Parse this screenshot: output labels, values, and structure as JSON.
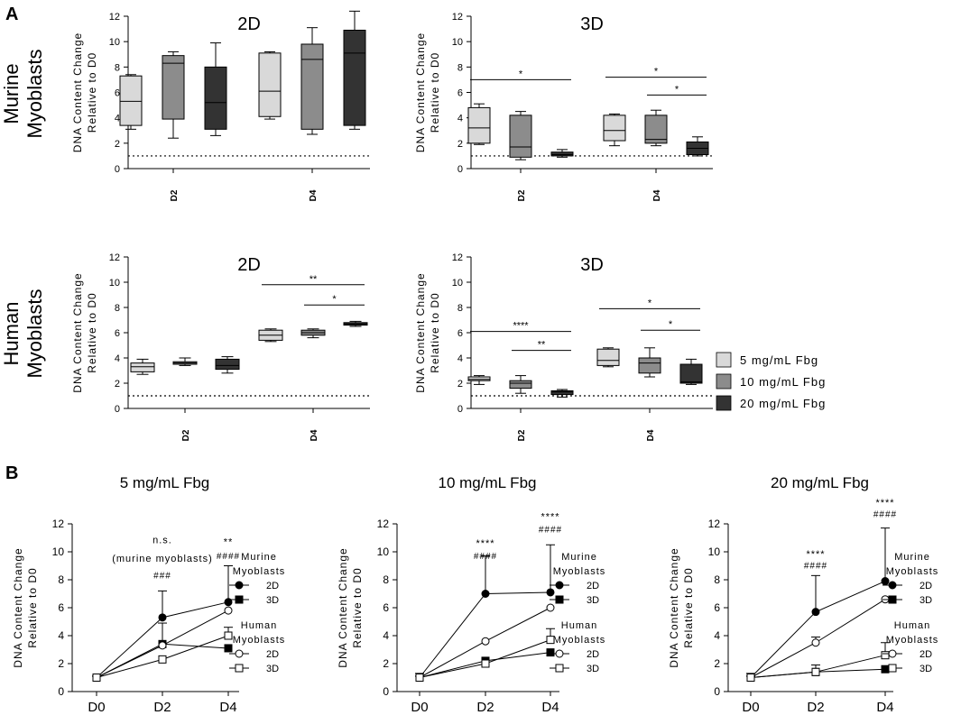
{
  "figure": {
    "panel_a_label": "A",
    "panel_b_label": "B",
    "row_labels": [
      [
        "Murine",
        "Myoblasts"
      ],
      [
        "Human",
        "Myoblasts"
      ]
    ]
  },
  "colors": {
    "fbg5": "#d9d9d9",
    "fbg10": "#8c8c8c",
    "fbg20": "#333333",
    "axis": "#000000"
  },
  "legend_a": {
    "entries": [
      "5 mg/mL Fbg",
      "10 mg/mL Fbg",
      "20 mg/mL Fbg"
    ]
  },
  "chart_data": [
    {
      "id": "murine-2d",
      "type": "box",
      "title": "2D",
      "ylabel": [
        "DNA Content Change",
        "Relative to D0"
      ],
      "ylim": [
        0,
        12
      ],
      "yticks": [
        0,
        2,
        4,
        6,
        8,
        10,
        12
      ],
      "baseline": 1,
      "categories": [
        "D2",
        "D4"
      ],
      "series": [
        {
          "name": "5 mg/mL Fbg",
          "boxes": [
            {
              "min": 3.1,
              "q1": 3.4,
              "median": 5.3,
              "q3": 7.3,
              "max": 7.4
            },
            {
              "min": 3.9,
              "q1": 4.1,
              "median": 6.1,
              "q3": 9.1,
              "max": 9.2
            }
          ]
        },
        {
          "name": "10 mg/mL Fbg",
          "boxes": [
            {
              "min": 2.4,
              "q1": 3.9,
              "median": 8.3,
              "q3": 8.9,
              "max": 9.2
            },
            {
              "min": 2.7,
              "q1": 3.1,
              "median": 8.6,
              "q3": 9.8,
              "max": 11.1
            }
          ]
        },
        {
          "name": "20 mg/mL Fbg",
          "boxes": [
            {
              "min": 2.6,
              "q1": 3.1,
              "median": 5.2,
              "q3": 8.0,
              "max": 9.9
            },
            {
              "min": 3.1,
              "q1": 3.4,
              "median": 9.1,
              "q3": 10.9,
              "max": 12.4
            }
          ]
        }
      ],
      "annotations": []
    },
    {
      "id": "murine-3d",
      "type": "box",
      "title": "3D",
      "ylabel": [
        "DNA Content Change",
        "Relative to D0"
      ],
      "ylim": [
        0,
        12
      ],
      "yticks": [
        0,
        2,
        4,
        6,
        8,
        10,
        12
      ],
      "baseline": 1,
      "categories": [
        "D2",
        "D4"
      ],
      "series": [
        {
          "name": "5 mg/mL Fbg",
          "boxes": [
            {
              "min": 1.9,
              "q1": 2.0,
              "median": 3.2,
              "q3": 4.8,
              "max": 5.1
            },
            {
              "min": 1.8,
              "q1": 2.2,
              "median": 3.0,
              "q3": 4.2,
              "max": 4.3
            }
          ]
        },
        {
          "name": "10 mg/mL Fbg",
          "boxes": [
            {
              "min": 0.7,
              "q1": 0.9,
              "median": 1.7,
              "q3": 4.2,
              "max": 4.5
            },
            {
              "min": 1.8,
              "q1": 2.0,
              "median": 2.3,
              "q3": 4.2,
              "max": 4.6
            }
          ]
        },
        {
          "name": "20 mg/mL Fbg",
          "boxes": [
            {
              "min": 0.9,
              "q1": 1.0,
              "median": 1.1,
              "q3": 1.3,
              "max": 1.5
            },
            {
              "min": 1.0,
              "q1": 1.1,
              "median": 1.6,
              "q3": 2.1,
              "max": 2.5
            }
          ]
        }
      ],
      "annotations": [
        {
          "y": 7.0,
          "from": [
            0,
            0
          ],
          "to": [
            0,
            2
          ],
          "label": "*"
        },
        {
          "y": 7.2,
          "from": [
            1,
            0
          ],
          "to": [
            1,
            2
          ],
          "label": "*"
        },
        {
          "y": 5.8,
          "from": [
            1,
            1
          ],
          "to": [
            1,
            2
          ],
          "label": "*"
        }
      ]
    },
    {
      "id": "human-2d",
      "type": "box",
      "title": "2D",
      "ylabel": [
        "DNA Content Change",
        "Relative to D0"
      ],
      "ylim": [
        0,
        12
      ],
      "yticks": [
        0,
        2,
        4,
        6,
        8,
        10,
        12
      ],
      "baseline": 1,
      "categories": [
        "D2",
        "D4"
      ],
      "series": [
        {
          "name": "5 mg/mL Fbg",
          "boxes": [
            {
              "min": 2.7,
              "q1": 2.9,
              "median": 3.3,
              "q3": 3.6,
              "max": 3.9
            },
            {
              "min": 5.3,
              "q1": 5.4,
              "median": 5.8,
              "q3": 6.2,
              "max": 6.3
            }
          ]
        },
        {
          "name": "10 mg/mL Fbg",
          "boxes": [
            {
              "min": 3.4,
              "q1": 3.5,
              "median": 3.6,
              "q3": 3.7,
              "max": 4.0
            },
            {
              "min": 5.6,
              "q1": 5.8,
              "median": 6.0,
              "q3": 6.2,
              "max": 6.3
            }
          ]
        },
        {
          "name": "20 mg/mL Fbg",
          "boxes": [
            {
              "min": 2.8,
              "q1": 3.1,
              "median": 3.4,
              "q3": 3.9,
              "max": 4.1
            },
            {
              "min": 6.5,
              "q1": 6.6,
              "median": 6.7,
              "q3": 6.8,
              "max": 6.9
            }
          ]
        }
      ],
      "annotations": [
        {
          "y": 9.8,
          "from": [
            1,
            0
          ],
          "to": [
            1,
            2
          ],
          "label": "**"
        },
        {
          "y": 8.2,
          "from": [
            1,
            1
          ],
          "to": [
            1,
            2
          ],
          "label": "*"
        }
      ]
    },
    {
      "id": "human-3d",
      "type": "box",
      "title": "3D",
      "ylabel": [
        "DNA Content Change",
        "Relative to D0"
      ],
      "ylim": [
        0,
        12
      ],
      "yticks": [
        0,
        2,
        4,
        6,
        8,
        10,
        12
      ],
      "baseline": 1,
      "categories": [
        "D2",
        "D4"
      ],
      "series": [
        {
          "name": "5 mg/mL Fbg",
          "boxes": [
            {
              "min": 1.9,
              "q1": 2.2,
              "median": 2.3,
              "q3": 2.5,
              "max": 2.6
            },
            {
              "min": 3.3,
              "q1": 3.4,
              "median": 3.8,
              "q3": 4.7,
              "max": 4.8
            }
          ]
        },
        {
          "name": "10 mg/mL Fbg",
          "boxes": [
            {
              "min": 1.2,
              "q1": 1.6,
              "median": 2.0,
              "q3": 2.2,
              "max": 2.6
            },
            {
              "min": 2.5,
              "q1": 2.8,
              "median": 3.6,
              "q3": 4.0,
              "max": 4.8
            }
          ]
        },
        {
          "name": "20 mg/mL Fbg",
          "boxes": [
            {
              "min": 0.9,
              "q1": 1.1,
              "median": 1.3,
              "q3": 1.4,
              "max": 1.5
            },
            {
              "min": 1.9,
              "q1": 2.0,
              "median": 2.1,
              "q3": 3.5,
              "max": 3.9
            }
          ]
        }
      ],
      "annotations": [
        {
          "y": 6.1,
          "from": [
            0,
            0
          ],
          "to": [
            0,
            2
          ],
          "label": "****"
        },
        {
          "y": 4.6,
          "from": [
            0,
            1
          ],
          "to": [
            0,
            2
          ],
          "label": "**"
        },
        {
          "y": 7.9,
          "from": [
            1,
            0
          ],
          "to": [
            1,
            2
          ],
          "label": "*"
        },
        {
          "y": 6.2,
          "from": [
            1,
            1
          ],
          "to": [
            1,
            2
          ],
          "label": "*"
        }
      ]
    },
    {
      "id": "fbg5-line",
      "type": "line",
      "title": "5 mg/mL Fbg",
      "ylabel": [
        "DNA Content Change",
        "Relative to D0"
      ],
      "ylim": [
        0,
        12
      ],
      "yticks": [
        0,
        2,
        4,
        6,
        8,
        10,
        12
      ],
      "x": [
        "D0",
        "D2",
        "D4"
      ],
      "series": [
        {
          "name": "Murine 2D",
          "marker": "circle",
          "filled": true,
          "values": [
            1.0,
            5.3,
            6.4
          ],
          "err": [
            0.1,
            1.9,
            2.6
          ]
        },
        {
          "name": "Murine 3D",
          "marker": "square",
          "filled": true,
          "values": [
            1.0,
            3.4,
            3.1
          ],
          "err": [
            0.1,
            1.5,
            0
          ]
        },
        {
          "name": "Human 2D",
          "marker": "circle",
          "filled": false,
          "values": [
            1.0,
            3.3,
            5.8
          ],
          "err": [
            0.1,
            0,
            0
          ]
        },
        {
          "name": "Human 3D",
          "marker": "square",
          "filled": false,
          "values": [
            1.0,
            2.3,
            4.0
          ],
          "err": [
            0.1,
            0,
            0.6
          ]
        }
      ],
      "annotations": [
        {
          "x": 1,
          "y": 10.6,
          "label": "n.s."
        },
        {
          "x": 1,
          "y": 9.3,
          "label": "(murine myoblasts)"
        },
        {
          "x": 1,
          "y": 8.1,
          "label": "###"
        },
        {
          "x": 2,
          "y": 10.5,
          "label": "**"
        },
        {
          "x": 2,
          "y": 9.5,
          "label": "####"
        }
      ],
      "legend": {
        "groups": [
          {
            "title": [
              "Murine",
              "Myoblasts"
            ],
            "items": [
              {
                "label": "2D",
                "series": 0
              },
              {
                "label": "3D",
                "series": 1
              }
            ]
          },
          {
            "title": [
              "Human",
              "Myoblasts"
            ],
            "items": [
              {
                "label": "2D",
                "series": 2
              },
              {
                "label": "3D",
                "series": 3
              }
            ]
          }
        ]
      }
    },
    {
      "id": "fbg10-line",
      "type": "line",
      "title": "10 mg/mL Fbg",
      "ylabel": [
        "DNA Content Change",
        "Relative to D0"
      ],
      "ylim": [
        0,
        12
      ],
      "yticks": [
        0,
        2,
        4,
        6,
        8,
        10,
        12
      ],
      "x": [
        "D0",
        "D2",
        "D4"
      ],
      "series": [
        {
          "name": "Murine 2D",
          "marker": "circle",
          "filled": true,
          "values": [
            1.0,
            7.0,
            7.1
          ],
          "err": [
            0.3,
            2.7,
            3.4
          ]
        },
        {
          "name": "Murine 3D",
          "marker": "square",
          "filled": true,
          "values": [
            1.0,
            2.2,
            2.8
          ],
          "err": [
            0.1,
            0,
            0
          ]
        },
        {
          "name": "Human 2D",
          "marker": "circle",
          "filled": false,
          "values": [
            1.0,
            3.6,
            6.0
          ],
          "err": [
            0.1,
            0,
            0
          ]
        },
        {
          "name": "Human 3D",
          "marker": "square",
          "filled": false,
          "values": [
            1.0,
            2.0,
            3.7
          ],
          "err": [
            0.1,
            0,
            0.8
          ]
        }
      ],
      "annotations": [
        {
          "x": 1,
          "y": 10.4,
          "label": "****"
        },
        {
          "x": 1,
          "y": 9.5,
          "label": "####"
        },
        {
          "x": 2,
          "y": 12.3,
          "label": "****"
        },
        {
          "x": 2,
          "y": 11.4,
          "label": "####"
        }
      ],
      "legend": {
        "groups": [
          {
            "title": [
              "Murine",
              "Myoblasts"
            ],
            "items": [
              {
                "label": "2D",
                "series": 0
              },
              {
                "label": "3D",
                "series": 1
              }
            ]
          },
          {
            "title": [
              "Human",
              "Myoblasts"
            ],
            "items": [
              {
                "label": "2D",
                "series": 2
              },
              {
                "label": "3D",
                "series": 3
              }
            ]
          }
        ]
      }
    },
    {
      "id": "fbg20-line",
      "type": "line",
      "title": "20 mg/mL Fbg",
      "ylabel": [
        "DNA Content Change",
        "Relative to D0"
      ],
      "ylim": [
        0,
        12
      ],
      "yticks": [
        0,
        2,
        4,
        6,
        8,
        10,
        12
      ],
      "x": [
        "D0",
        "D2",
        "D4"
      ],
      "series": [
        {
          "name": "Murine 2D",
          "marker": "circle",
          "filled": true,
          "values": [
            1.0,
            5.7,
            7.9
          ],
          "err": [
            0.3,
            2.6,
            3.8
          ]
        },
        {
          "name": "Murine 3D",
          "marker": "square",
          "filled": true,
          "values": [
            1.0,
            1.4,
            1.6
          ],
          "err": [
            0.1,
            0,
            0
          ]
        },
        {
          "name": "Human 2D",
          "marker": "circle",
          "filled": false,
          "values": [
            1.0,
            3.5,
            6.6
          ],
          "err": [
            0.1,
            0.4,
            0
          ]
        },
        {
          "name": "Human 3D",
          "marker": "square",
          "filled": false,
          "values": [
            1.0,
            1.4,
            2.6
          ],
          "err": [
            0.1,
            0.5,
            0.9
          ]
        }
      ],
      "annotations": [
        {
          "x": 1,
          "y": 9.6,
          "label": "****"
        },
        {
          "x": 1,
          "y": 8.8,
          "label": "####"
        },
        {
          "x": 2,
          "y": 13.3,
          "label": "****"
        },
        {
          "x": 2,
          "y": 12.5,
          "label": "####"
        }
      ],
      "legend": {
        "groups": [
          {
            "title": [
              "Murine",
              "Myoblasts"
            ],
            "items": [
              {
                "label": "2D",
                "series": 0
              },
              {
                "label": "3D",
                "series": 1
              }
            ]
          },
          {
            "title": [
              "Human",
              "Myoblasts"
            ],
            "items": [
              {
                "label": "2D",
                "series": 2
              },
              {
                "label": "3D",
                "series": 3
              }
            ]
          }
        ]
      }
    }
  ]
}
